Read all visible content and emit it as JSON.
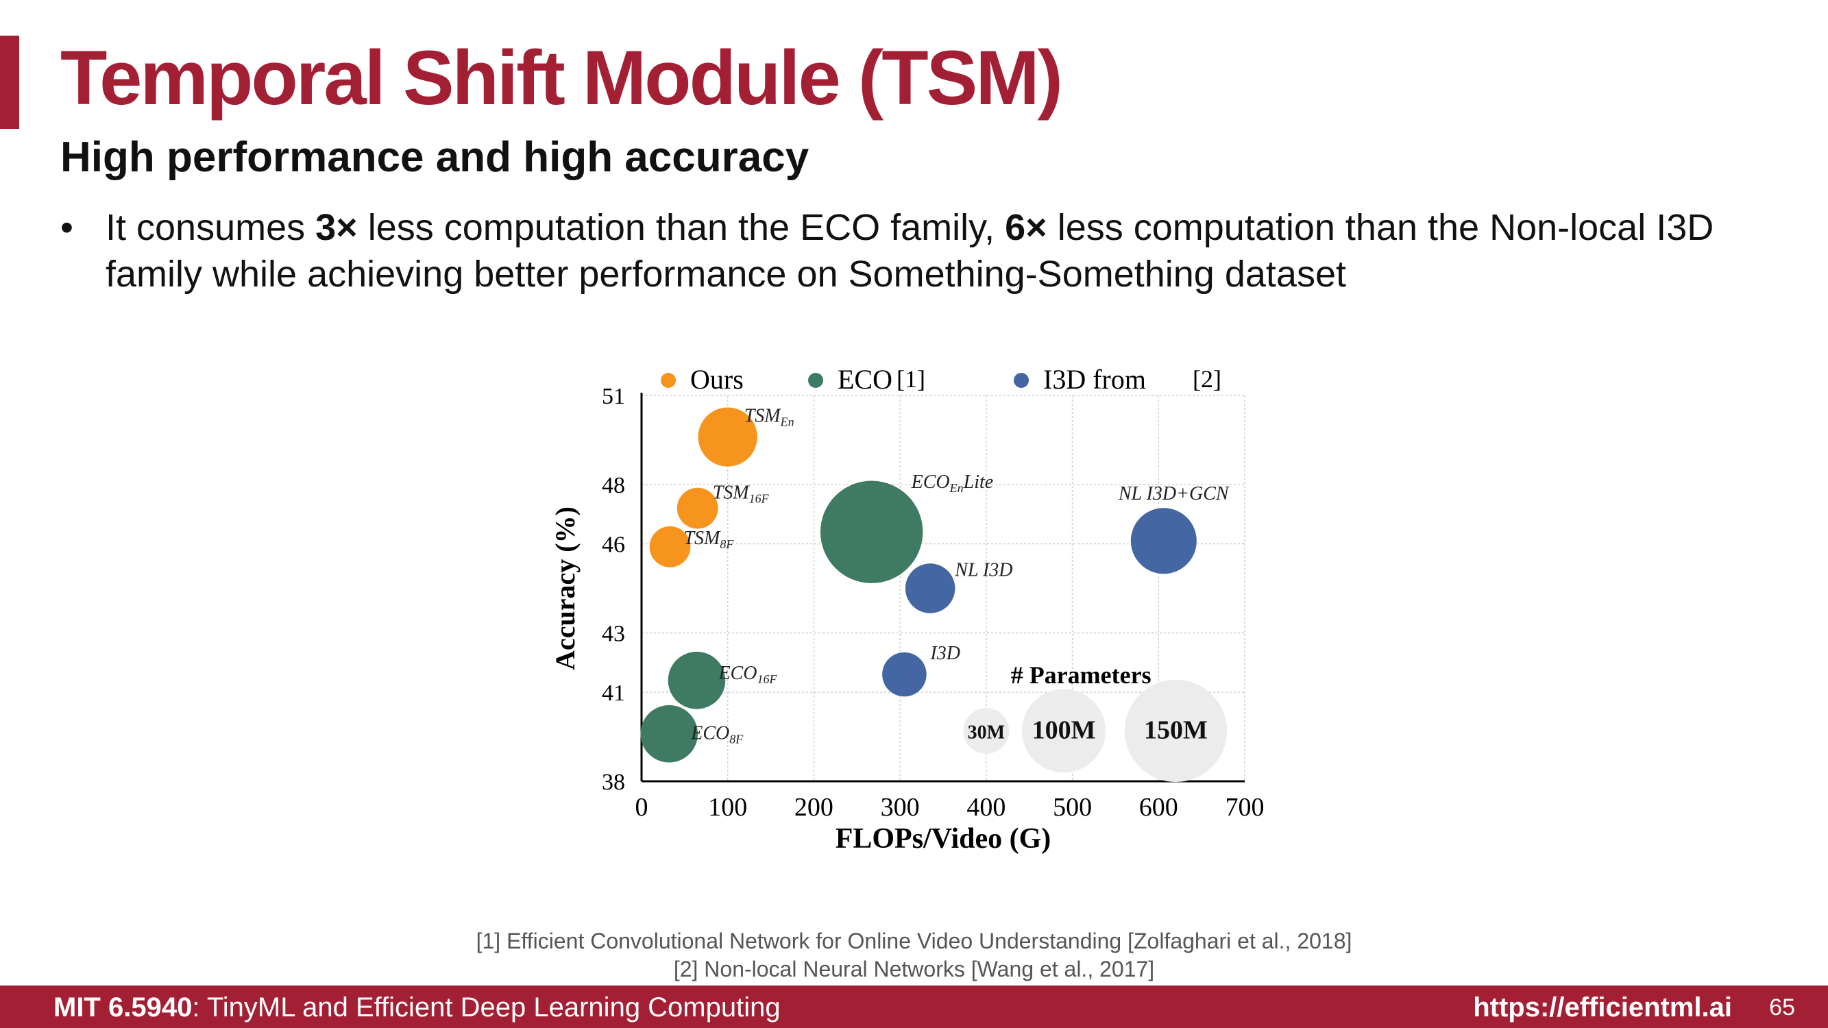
{
  "slide": {
    "title": "Temporal Shift Module (TSM)",
    "subtitle": "High performance and high accuracy",
    "bullet": {
      "t1": "It consumes ",
      "b1": "3×",
      "t2": " less computation than the ECO family, ",
      "b2": "6×",
      "t3": " less computation than the Non-local I3D family while achieving better performance on Something-Something dataset"
    },
    "references": [
      "[1] Efficient Convolutional Network for Online Video Understanding [Zolfaghari et al., 2018]",
      "[2] Non-local Neural Networks [Wang et al., 2017]"
    ],
    "footer": {
      "course_code": "MIT 6.5940",
      "course_name": ": TinyML and Efficient Deep Learning Computing",
      "url": "https://efficientml.ai",
      "page": "65"
    }
  },
  "colors": {
    "brand": "#a31f34",
    "ours": "#f7941d",
    "eco": "#3f7b62",
    "i3d": "#4467a3",
    "param_bubble": "#ececec"
  },
  "chart_data": {
    "type": "scatter",
    "xlabel": "FLOPs/Video (G)",
    "ylabel": "Accuracy (%)",
    "xlim": [
      0,
      700
    ],
    "ylim": [
      38,
      51
    ],
    "xticks": [
      0,
      100,
      200,
      300,
      400,
      500,
      600,
      700
    ],
    "yticks": [
      38,
      41,
      43,
      46,
      48,
      51
    ],
    "grid": true,
    "legend": {
      "placement": "top",
      "entries": [
        {
          "label": "Ours",
          "color": "#f7941d"
        },
        {
          "label": "ECO",
          "ref": "[1]",
          "color": "#3f7b62"
        },
        {
          "label": "I3D from",
          "ref": "[2]",
          "color": "#4467a3"
        }
      ]
    },
    "series": [
      {
        "name": "Ours",
        "color": "#f7941d",
        "points": [
          {
            "label_base": "TSM",
            "label_sub": "En",
            "x": 100,
            "y": 49.6,
            "params": 50
          },
          {
            "label_base": "TSM",
            "label_sub": "16F",
            "x": 65,
            "y": 47.2,
            "params": 24
          },
          {
            "label_base": "TSM",
            "label_sub": "8F",
            "x": 33,
            "y": 45.9,
            "params": 24
          }
        ]
      },
      {
        "name": "ECO",
        "color": "#3f7b62",
        "points": [
          {
            "label_base": "ECO",
            "label_sub": "En",
            "label_suffix": "Lite",
            "x": 267,
            "y": 46.4,
            "params": 150
          },
          {
            "label_base": "ECO",
            "label_sub": "16F",
            "x": 64,
            "y": 41.4,
            "params": 47
          },
          {
            "label_base": "ECO",
            "label_sub": "8F",
            "x": 32,
            "y": 39.6,
            "params": 47
          }
        ]
      },
      {
        "name": "I3D from",
        "color": "#4467a3",
        "points": [
          {
            "label_base": "NL I3D+GCN",
            "x": 606,
            "y": 46.1,
            "params": 62
          },
          {
            "label_base": "NL I3D",
            "x": 335,
            "y": 44.5,
            "params": 35.3
          },
          {
            "label_base": "I3D",
            "x": 305,
            "y": 41.6,
            "params": 28
          }
        ]
      }
    ],
    "size_legend": {
      "title": "# Parameters",
      "items": [
        {
          "label": "30M",
          "params": 30,
          "x": 400,
          "y": 39.7
        },
        {
          "label": "100M",
          "params": 100,
          "x": 490,
          "y": 39.7
        },
        {
          "label": "150M",
          "params": 150,
          "x": 620,
          "y": 39.7
        }
      ]
    }
  }
}
